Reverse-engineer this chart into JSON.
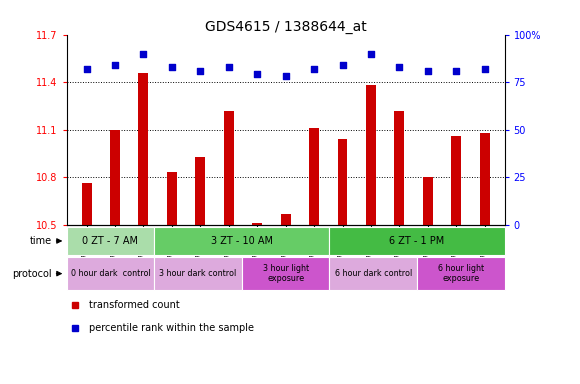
{
  "title": "GDS4615 / 1388644_at",
  "samples": [
    "GSM724207",
    "GSM724208",
    "GSM724209",
    "GSM724210",
    "GSM724211",
    "GSM724212",
    "GSM724213",
    "GSM724214",
    "GSM724215",
    "GSM724216",
    "GSM724217",
    "GSM724218",
    "GSM724219",
    "GSM724220",
    "GSM724221"
  ],
  "red_values": [
    10.76,
    11.1,
    11.46,
    10.83,
    10.93,
    11.22,
    10.51,
    10.57,
    11.11,
    11.04,
    11.38,
    11.22,
    10.8,
    11.06,
    11.08
  ],
  "blue_values": [
    82,
    84,
    90,
    83,
    81,
    83,
    79,
    78,
    82,
    84,
    90,
    83,
    81,
    81,
    82
  ],
  "ylim_left": [
    10.5,
    11.7
  ],
  "ylim_right": [
    0,
    100
  ],
  "yticks_left": [
    10.5,
    10.8,
    11.1,
    11.4,
    11.7
  ],
  "yticks_right": [
    0,
    25,
    50,
    75,
    100
  ],
  "ytick_labels_right": [
    "0",
    "25",
    "50",
    "75",
    "100%"
  ],
  "bar_color": "#cc0000",
  "dot_color": "#0000cc",
  "time_row": {
    "label": "time",
    "groups": [
      {
        "text": "0 ZT - 7 AM",
        "start": 0,
        "end": 3,
        "color": "#aaddaa"
      },
      {
        "text": "3 ZT - 10 AM",
        "start": 3,
        "end": 9,
        "color": "#66cc66"
      },
      {
        "text": "6 ZT - 1 PM",
        "start": 9,
        "end": 15,
        "color": "#44bb44"
      }
    ]
  },
  "protocol_row": {
    "label": "protocol",
    "groups": [
      {
        "text": "0 hour dark  control",
        "start": 0,
        "end": 3,
        "color": "#ddaadd"
      },
      {
        "text": "3 hour dark control",
        "start": 3,
        "end": 6,
        "color": "#ddaadd"
      },
      {
        "text": "3 hour light\nexposure",
        "start": 6,
        "end": 9,
        "color": "#cc55cc"
      },
      {
        "text": "6 hour dark control",
        "start": 9,
        "end": 12,
        "color": "#ddaadd"
      },
      {
        "text": "6 hour light\nexposure",
        "start": 12,
        "end": 15,
        "color": "#cc55cc"
      }
    ]
  },
  "legend": [
    {
      "label": "transformed count",
      "color": "#cc0000"
    },
    {
      "label": "percentile rank within the sample",
      "color": "#0000cc"
    }
  ],
  "background_color": "#ffffff",
  "grid_yticks": [
    10.8,
    11.1,
    11.4
  ]
}
